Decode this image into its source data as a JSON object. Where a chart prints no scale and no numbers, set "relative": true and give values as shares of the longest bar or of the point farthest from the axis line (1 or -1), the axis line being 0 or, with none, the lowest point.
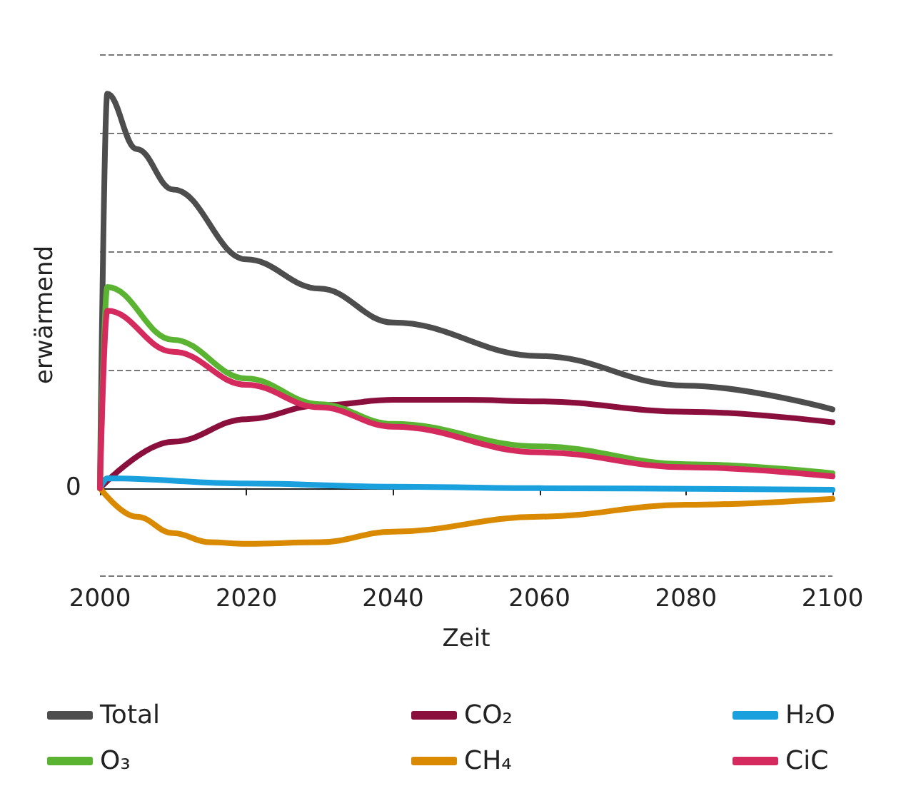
{
  "chart_data": {
    "type": "line",
    "relative": true,
    "xlabel": "Zeit",
    "ylabel": "erwärmend",
    "xlim": [
      2000,
      2100
    ],
    "xticks": [
      2000,
      2020,
      2040,
      2060,
      2080,
      2100
    ],
    "annotations": [
      "0"
    ],
    "grid": "y",
    "legend": "bottom",
    "line_style": "solid",
    "marker": "none",
    "series": [
      {
        "name": "Total",
        "color": "#4d4d4d",
        "x": [
          2000,
          2001,
          2005,
          2010,
          2020,
          2030,
          2040,
          2060,
          2080,
          2100
        ],
        "values": [
          0,
          1,
          0.86,
          0.757,
          0.58,
          0.506,
          0.42,
          0.335,
          0.26,
          0.2
        ]
      },
      {
        "name": "CO₂",
        "color": "#8a0f3c",
        "x": [
          2000,
          2010,
          2020,
          2030,
          2040,
          2050,
          2060,
          2080,
          2100
        ],
        "values": [
          0,
          0.118,
          0.175,
          0.21,
          0.224,
          0.224,
          0.22,
          0.194,
          0.167
        ]
      },
      {
        "name": "H₂O",
        "color": "#1aa0dc",
        "x": [
          2000,
          2001,
          2020,
          2040,
          2060,
          2100
        ],
        "values": [
          0,
          0.025,
          0.012,
          0.004,
          0,
          -0.004
        ]
      },
      {
        "name": "O₃",
        "color": "#5ab432",
        "x": [
          2000,
          2001,
          2010,
          2020,
          2030,
          2040,
          2060,
          2080,
          2100
        ],
        "values": [
          0,
          0.51,
          0.376,
          0.278,
          0.213,
          0.163,
          0.106,
          0.061,
          0.038
        ]
      },
      {
        "name": "CH₄",
        "color": "#d98a00",
        "x": [
          2000,
          2005,
          2010,
          2015,
          2020,
          2030,
          2040,
          2060,
          2080,
          2100
        ],
        "values": [
          0,
          -0.072,
          -0.114,
          -0.137,
          -0.141,
          -0.137,
          -0.11,
          -0.072,
          -0.042,
          -0.027
        ]
      },
      {
        "name": "CiC",
        "color": "#d42a5e",
        "x": [
          2000,
          2001,
          2010,
          2020,
          2030,
          2040,
          2060,
          2080,
          2100
        ],
        "values": [
          0,
          0.45,
          0.346,
          0.262,
          0.205,
          0.156,
          0.091,
          0.053,
          0.03
        ]
      }
    ]
  }
}
